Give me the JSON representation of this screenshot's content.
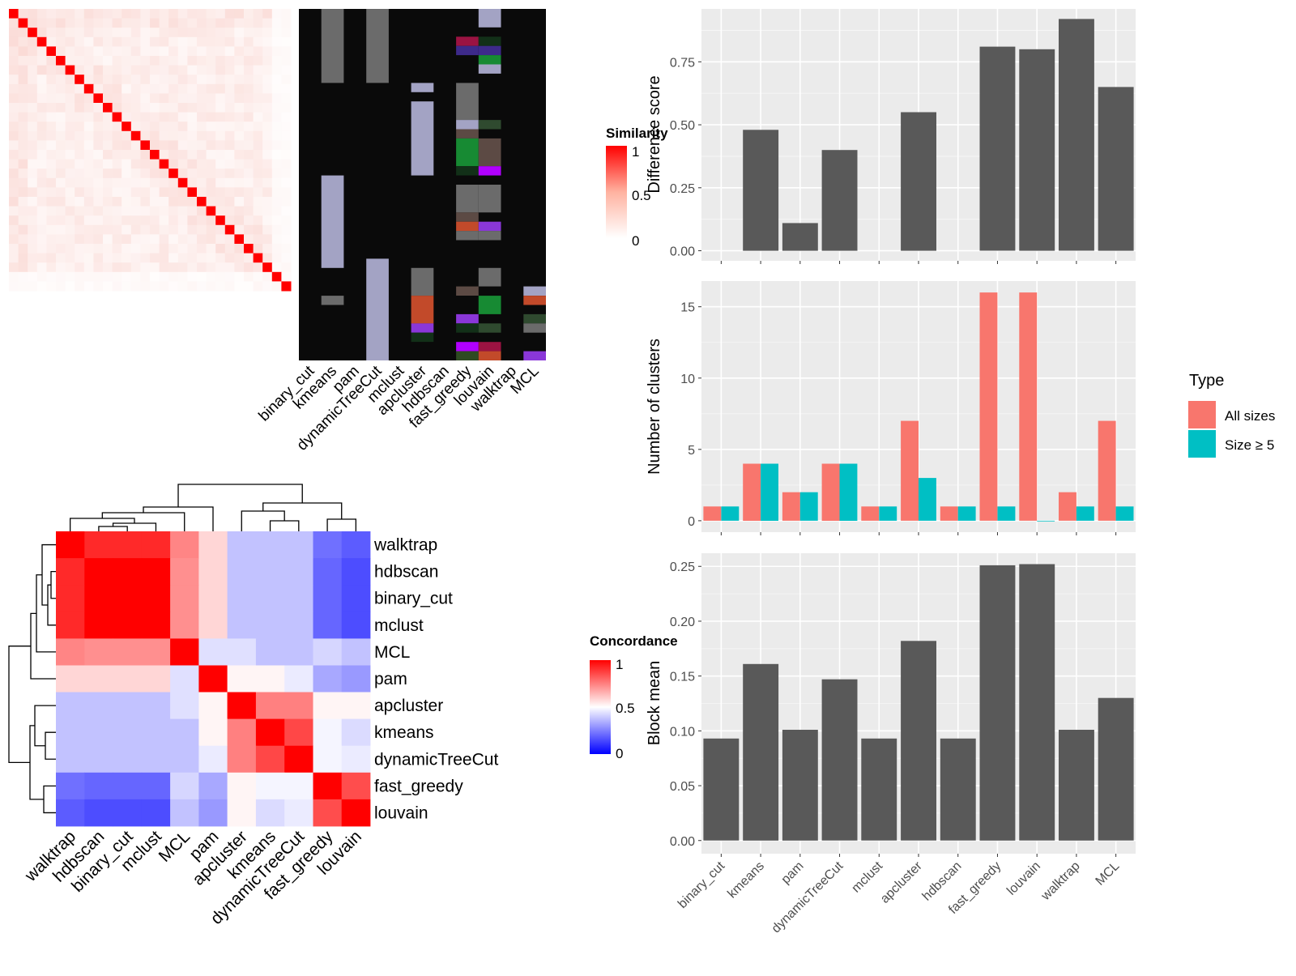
{
  "methods": [
    "binary_cut",
    "kmeans",
    "pam",
    "dynamicTreeCut",
    "mclust",
    "apcluster",
    "hdbscan",
    "fast_greedy",
    "louvain",
    "walktrap",
    "MCL"
  ],
  "similarity_panel": {
    "legend_title": "Similarity",
    "legend_ticks": [
      "1",
      "0.5",
      "0"
    ],
    "n_terms": 30,
    "label_order": [
      "binary_cut",
      "kmeans",
      "pam",
      "dynamicTreeCut",
      "mclust",
      "apcluster",
      "hdbscan",
      "fast_greedy",
      "louvain",
      "walktrap",
      "MCL"
    ],
    "class_colors": [
      "#0a0a0a",
      "#6b6b6b",
      "#a3a3c4",
      "#9b1342",
      "#3d2a8a",
      "#2e4a22",
      "#178a33",
      "#c24a2a",
      "#8a37d8",
      "#b100ff",
      "#5c4a44",
      "#123018",
      "#2f4a2f"
    ]
  },
  "concordance_panel": {
    "legend_title": "Concordance",
    "legend_ticks": [
      "1",
      "0.5",
      "0"
    ],
    "row_order": [
      "walktrap",
      "hdbscan",
      "binary_cut",
      "mclust",
      "MCL",
      "pam",
      "apcluster",
      "kmeans",
      "dynamicTreeCut",
      "fast_greedy",
      "louvain"
    ],
    "col_order": [
      "walktrap",
      "hdbscan",
      "binary_cut",
      "mclust",
      "MCL",
      "pam",
      "apcluster",
      "kmeans",
      "dynamicTreeCut",
      "fast_greedy",
      "louvain"
    ],
    "matrix": [
      [
        1.0,
        0.92,
        0.92,
        0.92,
        0.74,
        0.58,
        0.38,
        0.38,
        0.38,
        0.22,
        0.18
      ],
      [
        0.92,
        1.0,
        1.0,
        1.0,
        0.72,
        0.58,
        0.38,
        0.38,
        0.38,
        0.2,
        0.15
      ],
      [
        0.92,
        1.0,
        1.0,
        1.0,
        0.72,
        0.58,
        0.38,
        0.38,
        0.38,
        0.2,
        0.15
      ],
      [
        0.92,
        1.0,
        1.0,
        1.0,
        0.72,
        0.58,
        0.38,
        0.38,
        0.38,
        0.2,
        0.15
      ],
      [
        0.74,
        0.72,
        0.72,
        0.72,
        1.0,
        0.44,
        0.44,
        0.38,
        0.38,
        0.42,
        0.38
      ],
      [
        0.58,
        0.58,
        0.58,
        0.58,
        0.44,
        1.0,
        0.52,
        0.52,
        0.46,
        0.33,
        0.3
      ],
      [
        0.38,
        0.38,
        0.38,
        0.38,
        0.44,
        0.52,
        1.0,
        0.75,
        0.75,
        0.52,
        0.52
      ],
      [
        0.38,
        0.38,
        0.38,
        0.38,
        0.38,
        0.52,
        0.75,
        1.0,
        0.86,
        0.48,
        0.43
      ],
      [
        0.38,
        0.38,
        0.38,
        0.38,
        0.38,
        0.46,
        0.75,
        0.86,
        1.0,
        0.48,
        0.46
      ],
      [
        0.22,
        0.2,
        0.2,
        0.2,
        0.42,
        0.33,
        0.52,
        0.48,
        0.48,
        1.0,
        0.85
      ],
      [
        0.18,
        0.15,
        0.15,
        0.15,
        0.38,
        0.3,
        0.52,
        0.43,
        0.46,
        0.85,
        1.0
      ]
    ]
  },
  "chart_data": [
    {
      "type": "bar",
      "categories": [
        "binary_cut",
        "kmeans",
        "pam",
        "dynamicTreeCut",
        "mclust",
        "apcluster",
        "hdbscan",
        "fast_greedy",
        "louvain",
        "walktrap",
        "MCL"
      ],
      "values": [
        0,
        0.48,
        0.11,
        0.4,
        0,
        0.55,
        0,
        0.81,
        0.8,
        0.92,
        0.65
      ],
      "title": "",
      "xlabel": "",
      "ylabel": "Difference score",
      "ylim": [
        -0.04,
        0.96
      ],
      "yticks": [
        "0.00",
        "0.25",
        "0.50",
        "0.75"
      ],
      "bar_color": "#595959"
    },
    {
      "type": "bar",
      "categories": [
        "binary_cut",
        "kmeans",
        "pam",
        "dynamicTreeCut",
        "mclust",
        "apcluster",
        "hdbscan",
        "fast_greedy",
        "louvain",
        "walktrap",
        "MCL"
      ],
      "series": [
        {
          "name": "All sizes",
          "color": "#f8766d",
          "values": [
            1,
            4,
            2,
            4,
            1,
            7,
            1,
            16,
            16,
            2,
            7
          ]
        },
        {
          "name": "Size ≥ 5",
          "color": "#00bfc4",
          "values": [
            1,
            4,
            2,
            4,
            1,
            3,
            1,
            1,
            0,
            1,
            1
          ]
        }
      ],
      "title": "",
      "xlabel": "",
      "ylabel": "Number of clusters",
      "ylim": [
        -0.8,
        16.8
      ],
      "yticks": [
        "0",
        "5",
        "10",
        "15"
      ],
      "legend_title": "Type",
      "legend_position": "right"
    },
    {
      "type": "bar",
      "categories": [
        "binary_cut",
        "kmeans",
        "pam",
        "dynamicTreeCut",
        "mclust",
        "apcluster",
        "hdbscan",
        "fast_greedy",
        "louvain",
        "walktrap",
        "MCL"
      ],
      "values": [
        0.093,
        0.161,
        0.101,
        0.147,
        0.093,
        0.182,
        0.093,
        0.251,
        0.252,
        0.101,
        0.13
      ],
      "title": "",
      "xlabel": "",
      "ylabel": "Block mean",
      "ylim": [
        -0.012,
        0.262
      ],
      "yticks": [
        "0.00",
        "0.05",
        "0.10",
        "0.15",
        "0.20",
        "0.25"
      ],
      "bar_color": "#595959"
    }
  ]
}
